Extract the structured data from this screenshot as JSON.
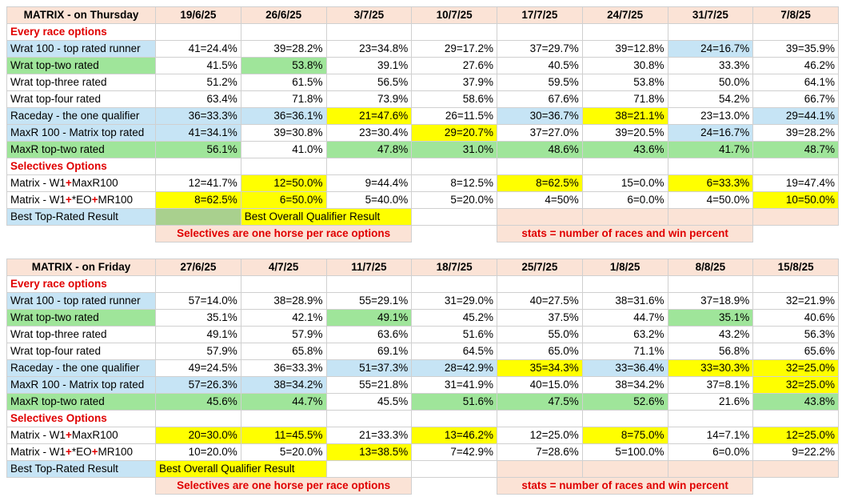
{
  "tables": [
    {
      "title": "MATRIX - on Thursday",
      "dates": [
        "19/6/25",
        "26/6/25",
        "3/7/25",
        "10/7/25",
        "17/7/25",
        "24/7/25",
        "31/7/25",
        "7/8/25"
      ],
      "section1": "Every race options",
      "section2": "Selectives Options",
      "rows1": [
        {
          "label": "Wrat 100 - top rated runner",
          "fill": "blue",
          "cells": [
            [
              "41=24.4%",
              ""
            ],
            [
              "39=28.2%",
              ""
            ],
            [
              "23=34.8%",
              ""
            ],
            [
              "29=17.2%",
              ""
            ],
            [
              "37=29.7%",
              ""
            ],
            [
              "39=12.8%",
              ""
            ],
            [
              "24=16.7%",
              "blue"
            ],
            [
              "39=35.9%",
              ""
            ]
          ]
        },
        {
          "label": "Wrat top-two rated",
          "fill": "green",
          "cells": [
            [
              "41.5%",
              ""
            ],
            [
              "53.8%",
              "green"
            ],
            [
              "39.1%",
              ""
            ],
            [
              "27.6%",
              ""
            ],
            [
              "40.5%",
              ""
            ],
            [
              "30.8%",
              ""
            ],
            [
              "33.3%",
              ""
            ],
            [
              "46.2%",
              ""
            ]
          ]
        },
        {
          "label": "Wrat top-three rated",
          "fill": "",
          "cells": [
            [
              "51.2%",
              ""
            ],
            [
              "61.5%",
              ""
            ],
            [
              "56.5%",
              ""
            ],
            [
              "37.9%",
              ""
            ],
            [
              "59.5%",
              ""
            ],
            [
              "53.8%",
              ""
            ],
            [
              "50.0%",
              ""
            ],
            [
              "64.1%",
              ""
            ]
          ]
        },
        {
          "label": "Wrat top-four rated",
          "fill": "",
          "cells": [
            [
              "63.4%",
              ""
            ],
            [
              "71.8%",
              ""
            ],
            [
              "73.9%",
              ""
            ],
            [
              "58.6%",
              ""
            ],
            [
              "67.6%",
              ""
            ],
            [
              "71.8%",
              ""
            ],
            [
              "54.2%",
              ""
            ],
            [
              "66.7%",
              ""
            ]
          ]
        },
        {
          "label": "Raceday - the one qualifier",
          "fill": "blue",
          "cells": [
            [
              "36=33.3%",
              "blue"
            ],
            [
              "36=36.1%",
              "blue"
            ],
            [
              "21=47.6%",
              "yellow"
            ],
            [
              "26=11.5%",
              ""
            ],
            [
              "30=36.7%",
              "blue"
            ],
            [
              "38=21.1%",
              "yellow"
            ],
            [
              "23=13.0%",
              ""
            ],
            [
              "29=44.1%",
              "blue"
            ]
          ]
        },
        {
          "label": "MaxR 100 - Matrix top rated",
          "fill": "blue",
          "cells": [
            [
              "41=34.1%",
              "blue"
            ],
            [
              "39=30.8%",
              ""
            ],
            [
              "23=30.4%",
              ""
            ],
            [
              "29=20.7%",
              "yellow"
            ],
            [
              "37=27.0%",
              ""
            ],
            [
              "39=20.5%",
              ""
            ],
            [
              "24=16.7%",
              "blue"
            ],
            [
              "39=28.2%",
              ""
            ]
          ]
        },
        {
          "label": "MaxR top-two rated",
          "fill": "green",
          "cells": [
            [
              "56.1%",
              "green"
            ],
            [
              "41.0%",
              ""
            ],
            [
              "47.8%",
              "green"
            ],
            [
              "31.0%",
              "green"
            ],
            [
              "48.6%",
              "green"
            ],
            [
              "43.6%",
              "green"
            ],
            [
              "41.7%",
              "green"
            ],
            [
              "48.7%",
              "green"
            ]
          ]
        }
      ],
      "rows2": [
        {
          "pre": "Matrix - W1",
          "plus1": "+",
          "mid": "MaxR100",
          "plus2": "",
          "post": "",
          "cells": [
            [
              "12=41.7%",
              ""
            ],
            [
              "12=50.0%",
              "yellow"
            ],
            [
              "9=44.4%",
              ""
            ],
            [
              "8=12.5%",
              ""
            ],
            [
              "8=62.5%",
              "yellow"
            ],
            [
              "15=0.0%",
              ""
            ],
            [
              "6=33.3%",
              "yellow"
            ],
            [
              "19=47.4%",
              ""
            ]
          ]
        },
        {
          "pre": "Matrix - W1",
          "plus1": "+",
          "mid": "*EO",
          "plus2": "+",
          "post": "MR100",
          "cells": [
            [
              "8=62.5%",
              "yellow"
            ],
            [
              "6=50.0%",
              "yellow"
            ],
            [
              "5=40.0%",
              ""
            ],
            [
              "5=20.0%",
              ""
            ],
            [
              "4=50%",
              ""
            ],
            [
              "6=0.0%",
              ""
            ],
            [
              "4=50.0%",
              ""
            ],
            [
              "10=50.0%",
              "yellow"
            ]
          ]
        }
      ],
      "best_label": "Best Top-Rated Result",
      "best_overall": "Best Overall Qualifier Result",
      "note_left": "Selectives are one horse per race options",
      "note_right": "stats = number of races and win percent"
    },
    {
      "title": "MATRIX - on Friday",
      "dates": [
        "27/6/25",
        "4/7/25",
        "11/7/25",
        "18/7/25",
        "25/7/25",
        "1/8/25",
        "8/8/25",
        "15/8/25"
      ],
      "section1": "Every race options",
      "section2": "Selectives Options",
      "rows1": [
        {
          "label": "Wrat 100 - top rated runner",
          "fill": "blue",
          "cells": [
            [
              "57=14.0%",
              ""
            ],
            [
              "38=28.9%",
              ""
            ],
            [
              "55=29.1%",
              ""
            ],
            [
              "31=29.0%",
              ""
            ],
            [
              "40=27.5%",
              ""
            ],
            [
              "38=31.6%",
              ""
            ],
            [
              "37=18.9%",
              ""
            ],
            [
              "32=21.9%",
              ""
            ]
          ]
        },
        {
          "label": "Wrat top-two rated",
          "fill": "green",
          "cells": [
            [
              "35.1%",
              ""
            ],
            [
              "42.1%",
              ""
            ],
            [
              "49.1%",
              "green"
            ],
            [
              "45.2%",
              ""
            ],
            [
              "37.5%",
              ""
            ],
            [
              "44.7%",
              ""
            ],
            [
              "35.1%",
              "green"
            ],
            [
              "40.6%",
              ""
            ]
          ]
        },
        {
          "label": "Wrat top-three rated",
          "fill": "",
          "cells": [
            [
              "49.1%",
              ""
            ],
            [
              "57.9%",
              ""
            ],
            [
              "63.6%",
              ""
            ],
            [
              "51.6%",
              ""
            ],
            [
              "55.0%",
              ""
            ],
            [
              "63.2%",
              ""
            ],
            [
              "43.2%",
              ""
            ],
            [
              "56.3%",
              ""
            ]
          ]
        },
        {
          "label": "Wrat top-four rated",
          "fill": "",
          "cells": [
            [
              "57.9%",
              ""
            ],
            [
              "65.8%",
              ""
            ],
            [
              "69.1%",
              ""
            ],
            [
              "64.5%",
              ""
            ],
            [
              "65.0%",
              ""
            ],
            [
              "71.1%",
              ""
            ],
            [
              "56.8%",
              ""
            ],
            [
              "65.6%",
              ""
            ]
          ]
        },
        {
          "label": "Raceday - the one qualifier",
          "fill": "blue",
          "cells": [
            [
              "49=24.5%",
              ""
            ],
            [
              "36=33.3%",
              ""
            ],
            [
              "51=37.3%",
              "blue"
            ],
            [
              "28=42.9%",
              "blue"
            ],
            [
              "35=34.3%",
              "yellow"
            ],
            [
              "33=36.4%",
              "blue"
            ],
            [
              "33=30.3%",
              "yellow"
            ],
            [
              "32=25.0%",
              "yellow"
            ]
          ]
        },
        {
          "label": "MaxR 100 - Matrix top rated",
          "fill": "blue",
          "cells": [
            [
              "57=26.3%",
              "blue"
            ],
            [
              "38=34.2%",
              "blue"
            ],
            [
              "55=21.8%",
              ""
            ],
            [
              "31=41.9%",
              ""
            ],
            [
              "40=15.0%",
              ""
            ],
            [
              "38=34.2%",
              ""
            ],
            [
              "37=8.1%",
              ""
            ],
            [
              "32=25.0%",
              "yellow"
            ]
          ]
        },
        {
          "label": "MaxR top-two rated",
          "fill": "green",
          "cells": [
            [
              "45.6%",
              "green"
            ],
            [
              "44.7%",
              "green"
            ],
            [
              "45.5%",
              ""
            ],
            [
              "51.6%",
              "green"
            ],
            [
              "47.5%",
              "green"
            ],
            [
              "52.6%",
              "green"
            ],
            [
              "21.6%",
              ""
            ],
            [
              "43.8%",
              "green"
            ]
          ]
        }
      ],
      "rows2": [
        {
          "pre": "Matrix - W1",
          "plus1": "+",
          "mid": "MaxR100",
          "plus2": "",
          "post": "",
          "cells": [
            [
              "20=30.0%",
              "yellow"
            ],
            [
              "11=45.5%",
              "yellow"
            ],
            [
              "21=33.3%",
              ""
            ],
            [
              "13=46.2%",
              "yellow"
            ],
            [
              "12=25.0%",
              ""
            ],
            [
              "8=75.0%",
              "yellow"
            ],
            [
              "14=7.1%",
              ""
            ],
            [
              "12=25.0%",
              "yellow"
            ]
          ]
        },
        {
          "pre": "Matrix - W1",
          "plus1": "+",
          "mid": "*EO",
          "plus2": "+",
          "post": "MR100",
          "cells": [
            [
              "10=20.0%",
              ""
            ],
            [
              "5=20.0%",
              ""
            ],
            [
              "13=38.5%",
              "yellow"
            ],
            [
              "7=42.9%",
              ""
            ],
            [
              "7=28.6%",
              ""
            ],
            [
              "5=100.0%",
              ""
            ],
            [
              "6=0.0%",
              ""
            ],
            [
              "9=22.2%",
              ""
            ]
          ]
        }
      ],
      "best_label": "Best Top-Rated Result",
      "best_overall": "Best Overall Qualifier Result",
      "note_left": "Selectives are one horse per race options",
      "note_right": "stats = number of races and win percent"
    }
  ]
}
